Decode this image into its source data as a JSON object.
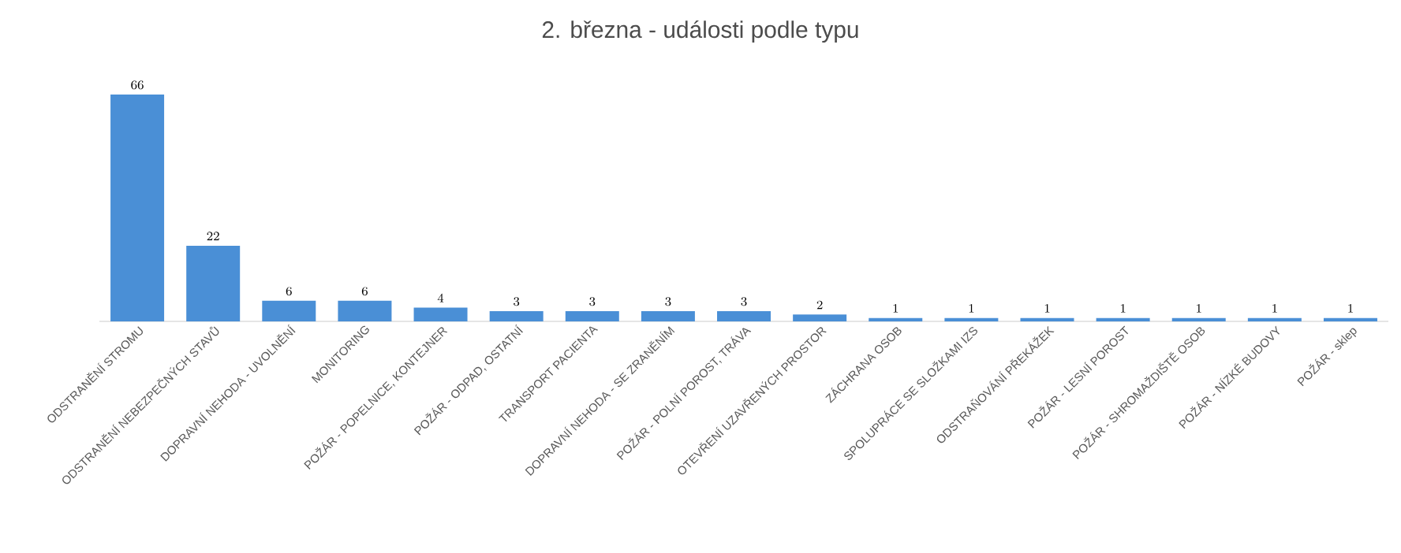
{
  "chart_data": {
    "type": "bar",
    "title": "2. března - události podle typu",
    "categories": [
      "ODSTRANĚNÍ STROMU",
      "ODSTRANĚNÍ NEBEZPEČNÝCH STAVŮ",
      "DOPRAVNÍ NEHODA - UVOLNĚNÍ",
      "MONITORING",
      "POŽÁR - POPELNICE, KONTEJNER",
      "POŽÁR - ODPAD, OSTATNÍ",
      "TRANSPORT PACIENTA",
      "DOPRAVNÍ NEHODA - SE ZRANĚNÍM",
      "POŽÁR - POLNÍ POROST, TRÁVA",
      "OTEVŘENÍ UZAVŘENÝCH PROSTOR",
      "ZÁCHRANA OSOB",
      "SPOLUPRÁCE SE SLOŽKAMI IZS",
      "ODSTRAŇOVÁNÍ PŘEKÁŽEK",
      "POŽÁR - LESNÍ POROST",
      "POŽÁR - SHROMAŽDIŠTĚ OSOB",
      "POŽÁR - NÍZKÉ BUDOVY",
      "POŽÁR - sklep"
    ],
    "values": [
      66,
      22,
      6,
      6,
      4,
      3,
      3,
      3,
      3,
      2,
      1,
      1,
      1,
      1,
      1,
      1,
      1
    ],
    "color": "#4a8fd6",
    "data_labels": true
  }
}
